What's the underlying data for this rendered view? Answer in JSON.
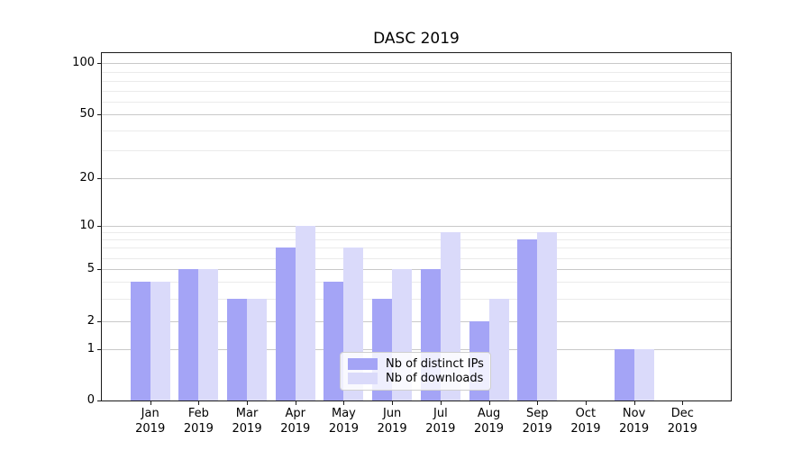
{
  "title": "DASC 2019",
  "chart_data": {
    "type": "bar",
    "title": "DASC 2019",
    "categories": [
      "Jan",
      "Feb",
      "Mar",
      "Apr",
      "May",
      "Jun",
      "Jul",
      "Aug",
      "Sep",
      "Oct",
      "Nov",
      "Dec"
    ],
    "x_tick_second_line": "2019",
    "series": [
      {
        "name": "Nb of distinct IPs",
        "color": "#a4a4f6",
        "values": [
          4,
          5,
          3,
          7,
          4,
          3,
          5,
          2,
          8,
          0,
          1,
          0
        ]
      },
      {
        "name": "Nb of downloads",
        "color": "#dadafa",
        "values": [
          4,
          5,
          3,
          10,
          7,
          5,
          9,
          3,
          9,
          0,
          1,
          0
        ]
      }
    ],
    "y_axis": {
      "scale": "log-like",
      "major_ticks": [
        0,
        1,
        2,
        5,
        10,
        20,
        50,
        100
      ],
      "minor_gridlines": [
        3,
        4,
        6,
        7,
        8,
        9,
        30,
        40,
        60,
        70,
        80,
        90
      ],
      "ylim_top_approx": 115
    },
    "legend": {
      "position": "lower center",
      "entries": [
        "Nb of distinct IPs",
        "Nb of downloads"
      ]
    },
    "grid": {
      "major_color": "#c9c9c9",
      "minor_color": "#ebebeb"
    }
  }
}
